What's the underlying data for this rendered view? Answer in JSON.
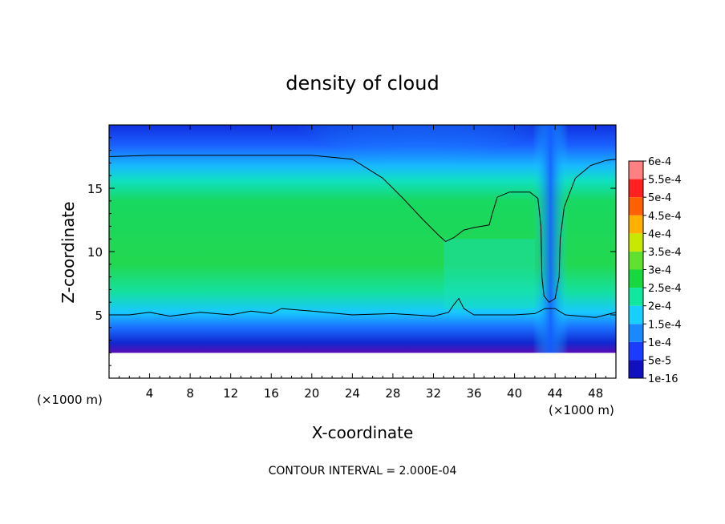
{
  "chart_data": {
    "type": "heatmap",
    "title": "density of cloud",
    "xlabel": "X-coordinate",
    "ylabel": "Z-coordinate",
    "x_unit_left": "(×1000 m)",
    "x_unit_right": "(×1000 m)",
    "footer": "CONTOUR INTERVAL = 2.000E-04",
    "xlim": [
      0,
      50
    ],
    "ylim": [
      0,
      20
    ],
    "x_ticks": [
      4,
      8,
      12,
      16,
      20,
      24,
      28,
      32,
      36,
      40,
      44,
      48
    ],
    "x_tick_labels": [
      "4",
      "8",
      "12",
      "16",
      "20",
      "24",
      "28",
      "32",
      "36",
      "40",
      "44",
      "48"
    ],
    "y_ticks": [
      5,
      10,
      15
    ],
    "y_tick_labels": [
      "5",
      "10",
      "15"
    ],
    "colorbar": {
      "labels": [
        "1e-16",
        "5e-5",
        "1e-4",
        "1.5e-4",
        "2e-4",
        "2.5e-4",
        "3e-4",
        "3.5e-4",
        "4e-4",
        "4.5e-4",
        "5e-4",
        "5.5e-4",
        "6e-4"
      ],
      "colors": [
        "#7a00a8",
        "#1010c0",
        "#1a3cff",
        "#1a88ff",
        "#18d0ff",
        "#10e8a0",
        "#18d840",
        "#60e030",
        "#c8e800",
        "#ffb000",
        "#ff6000",
        "#ff2020",
        "#ff8080"
      ]
    },
    "contour_level": 0.0002,
    "contour_line": [
      [
        0,
        17.5
      ],
      [
        4,
        17.6
      ],
      [
        10,
        17.6
      ],
      [
        20,
        17.6
      ],
      [
        24,
        17.3
      ],
      [
        27,
        15.8
      ],
      [
        29,
        14.2
      ],
      [
        31,
        12.5
      ],
      [
        32.5,
        11.3
      ],
      [
        33.2,
        10.8
      ],
      [
        34,
        11.1
      ],
      [
        35,
        11.7
      ],
      [
        36,
        11.9
      ],
      [
        37.5,
        12.1
      ],
      [
        37.8,
        13
      ],
      [
        38.3,
        14.3
      ],
      [
        39.5,
        14.7
      ],
      [
        41.5,
        14.7
      ],
      [
        42.3,
        14.2
      ],
      [
        42.6,
        12
      ],
      [
        42.7,
        8
      ],
      [
        42.9,
        6.5
      ],
      [
        43.4,
        6
      ],
      [
        44,
        6.3
      ],
      [
        44.4,
        8
      ],
      [
        44.5,
        11
      ],
      [
        44.9,
        13.5
      ],
      [
        46,
        15.8
      ],
      [
        47.5,
        16.8
      ],
      [
        49,
        17.2
      ],
      [
        50,
        17.3
      ]
    ],
    "cloud_base_line": [
      [
        0,
        5.0
      ],
      [
        2,
        5.0
      ],
      [
        4,
        5.2
      ],
      [
        6,
        4.9
      ],
      [
        9,
        5.2
      ],
      [
        12,
        5.0
      ],
      [
        14,
        5.3
      ],
      [
        16,
        5.1
      ],
      [
        17,
        5.5
      ],
      [
        20,
        5.3
      ],
      [
        24,
        5.0
      ],
      [
        28,
        5.1
      ],
      [
        32,
        4.9
      ],
      [
        33.5,
        5.2
      ],
      [
        34,
        5.8
      ],
      [
        34.5,
        6.3
      ],
      [
        35,
        5.5
      ],
      [
        36,
        5.0
      ],
      [
        40,
        5.0
      ],
      [
        42,
        5.1
      ],
      [
        43,
        5.5
      ],
      [
        44,
        5.5
      ],
      [
        45,
        5.0
      ],
      [
        48,
        4.8
      ],
      [
        50,
        5.2
      ]
    ],
    "missing_below_z": 2.0
  }
}
